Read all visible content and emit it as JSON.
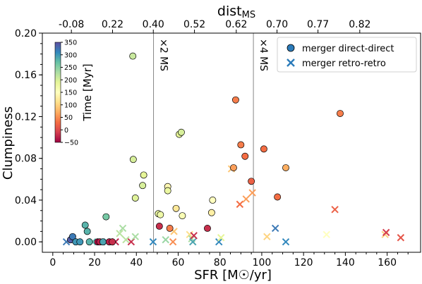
{
  "chart_data": {
    "type": "scatter",
    "xlabel": "SFR [M☉/yr]",
    "ylabel": "Clumpiness",
    "top_xlabel": "distMS",
    "xlim": [
      -5,
      176
    ],
    "ylim": [
      -0.01,
      0.2
    ],
    "x_ticks": [
      0,
      20,
      40,
      60,
      80,
      100,
      120,
      140,
      160
    ],
    "y_ticks": [
      0.0,
      0.04,
      0.08,
      0.12,
      0.16,
      0.2
    ],
    "top_ticks": [
      {
        "x": 8.9,
        "label": "-0.08"
      },
      {
        "x": 28.6,
        "label": "0.22"
      },
      {
        "x": 48.1,
        "label": "0.40"
      },
      {
        "x": 67.8,
        "label": "0.52"
      },
      {
        "x": 87.8,
        "label": "0.62"
      },
      {
        "x": 107.3,
        "label": "0.70"
      },
      {
        "x": 126.9,
        "label": "0.77"
      },
      {
        "x": 146.9,
        "label": "0.82"
      }
    ],
    "vlines": [
      {
        "x": 48.2,
        "label": "×2 MS"
      },
      {
        "x": 96.0,
        "label": "×4 MS"
      }
    ],
    "colorbar": {
      "label": "Time [Myr]",
      "range": [
        -50,
        350
      ],
      "ticks": [
        -50,
        0,
        50,
        100,
        150,
        200,
        250,
        300,
        350
      ],
      "colormap": "Spectral"
    },
    "legend": {
      "placement": "top-right",
      "entries": [
        {
          "label": "merger direct-direct",
          "marker": "circle",
          "color": "#2b7bba"
        },
        {
          "label": "merger retro-retro",
          "marker": "x",
          "color": "#2b7bba"
        }
      ]
    },
    "series": [
      {
        "name": "merger direct-direct",
        "marker": "circle",
        "points": [
          {
            "x": 8.5,
            "y": 0.002,
            "t": 340
          },
          {
            "x": 9.5,
            "y": 0.005,
            "t": 320
          },
          {
            "x": 11.0,
            "y": 0.0,
            "t": 300
          },
          {
            "x": 13.0,
            "y": 0.0,
            "t": 300
          },
          {
            "x": 15.5,
            "y": 0.016,
            "t": 280
          },
          {
            "x": 16.5,
            "y": 0.01,
            "t": 280
          },
          {
            "x": 17.5,
            "y": 0.0,
            "t": 280
          },
          {
            "x": 21.5,
            "y": 0.0,
            "t": -40
          },
          {
            "x": 22.5,
            "y": 0.0,
            "t": -30
          },
          {
            "x": 24.0,
            "y": 0.0,
            "t": 290
          },
          {
            "x": 25.5,
            "y": 0.024,
            "t": 260
          },
          {
            "x": 27.0,
            "y": 0.0,
            "t": -30
          },
          {
            "x": 28.5,
            "y": 0.0,
            "t": -20
          },
          {
            "x": 38.3,
            "y": 0.178,
            "t": 210
          },
          {
            "x": 38.5,
            "y": 0.079,
            "t": 200
          },
          {
            "x": 39.5,
            "y": 0.042,
            "t": 195
          },
          {
            "x": 43.5,
            "y": 0.064,
            "t": 190
          },
          {
            "x": 43.0,
            "y": 0.054,
            "t": 200
          },
          {
            "x": 50.5,
            "y": 0.027,
            "t": 180
          },
          {
            "x": 51.5,
            "y": 0.026,
            "t": 175
          },
          {
            "x": 51.0,
            "y": 0.015,
            "t": -20
          },
          {
            "x": 55.0,
            "y": 0.053,
            "t": 140
          },
          {
            "x": 55.0,
            "y": 0.049,
            "t": 180
          },
          {
            "x": 56.0,
            "y": 0.013,
            "t": 40
          },
          {
            "x": 60.5,
            "y": 0.103,
            "t": 190
          },
          {
            "x": 61.5,
            "y": 0.105,
            "t": 200
          },
          {
            "x": 59.0,
            "y": 0.032,
            "t": 120
          },
          {
            "x": 62.0,
            "y": 0.025,
            "t": 160
          },
          {
            "x": 74.0,
            "y": 0.013,
            "t": -20
          },
          {
            "x": 76.0,
            "y": 0.028,
            "t": 130
          },
          {
            "x": 76.5,
            "y": 0.04,
            "t": 150
          },
          {
            "x": 86.5,
            "y": 0.071,
            "t": 60
          },
          {
            "x": 87.5,
            "y": 0.136,
            "t": 40
          },
          {
            "x": 90.0,
            "y": 0.093,
            "t": 40
          },
          {
            "x": 92.0,
            "y": 0.082,
            "t": 30
          },
          {
            "x": 95.0,
            "y": 0.058,
            "t": 20
          },
          {
            "x": 101.0,
            "y": 0.089,
            "t": 30
          },
          {
            "x": 107.5,
            "y": 0.043,
            "t": 30
          },
          {
            "x": 111.5,
            "y": 0.071,
            "t": 70
          },
          {
            "x": 137.5,
            "y": 0.123,
            "t": 40
          }
        ]
      },
      {
        "name": "merger retro-retro",
        "marker": "x",
        "points": [
          {
            "x": 6.5,
            "y": 0.0,
            "t": 320
          },
          {
            "x": 19.0,
            "y": 0.0,
            "t": 280
          },
          {
            "x": 26.0,
            "y": 0.0,
            "t": 300
          },
          {
            "x": 30.0,
            "y": 0.0,
            "t": -30
          },
          {
            "x": 32.0,
            "y": 0.008,
            "t": 220
          },
          {
            "x": 33.5,
            "y": 0.013,
            "t": 230
          },
          {
            "x": 35.0,
            "y": 0.002,
            "t": 220
          },
          {
            "x": 37.5,
            "y": 0.0,
            "t": -20
          },
          {
            "x": 39.5,
            "y": 0.005,
            "t": 230
          },
          {
            "x": 48.0,
            "y": 0.0,
            "t": 310
          },
          {
            "x": 54.0,
            "y": 0.002,
            "t": 240
          },
          {
            "x": 57.5,
            "y": 0.0,
            "t": 50
          },
          {
            "x": 58.0,
            "y": 0.01,
            "t": 90
          },
          {
            "x": 65.5,
            "y": 0.007,
            "t": 110
          },
          {
            "x": 66.5,
            "y": 0.003,
            "t": 230
          },
          {
            "x": 67.0,
            "y": 0.0,
            "t": 290
          },
          {
            "x": 67.5,
            "y": 0.006,
            "t": -20
          },
          {
            "x": 79.5,
            "y": 0.0,
            "t": 310
          },
          {
            "x": 80.5,
            "y": 0.004,
            "t": 190
          },
          {
            "x": 85.5,
            "y": 0.07,
            "t": 90
          },
          {
            "x": 89.5,
            "y": 0.036,
            "t": 30
          },
          {
            "x": 92.5,
            "y": 0.041,
            "t": 60
          },
          {
            "x": 95.5,
            "y": 0.047,
            "t": 60
          },
          {
            "x": 102.5,
            "y": 0.005,
            "t": 100
          },
          {
            "x": 106.5,
            "y": 0.013,
            "t": 320
          },
          {
            "x": 111.5,
            "y": 0.0,
            "t": 310
          },
          {
            "x": 131.0,
            "y": 0.007,
            "t": 150
          },
          {
            "x": 135.0,
            "y": 0.031,
            "t": 20
          },
          {
            "x": 159.0,
            "y": 0.007,
            "t": 100
          },
          {
            "x": 159.5,
            "y": 0.009,
            "t": -10
          },
          {
            "x": 166.5,
            "y": 0.004,
            "t": 10
          }
        ]
      }
    ]
  }
}
